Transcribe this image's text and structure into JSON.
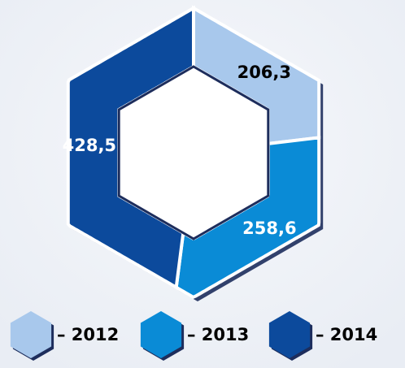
{
  "chart_data": {
    "type": "hexdonut",
    "categories": [
      "– 2012",
      "– 2013",
      "– 2014"
    ],
    "values": [
      206.3,
      258.6,
      428.5
    ],
    "value_labels": [
      "206,3",
      "258,6",
      "428,5"
    ],
    "colors": [
      "#a8c8ec",
      "#0a8bd6",
      "#0c4a9c"
    ]
  }
}
